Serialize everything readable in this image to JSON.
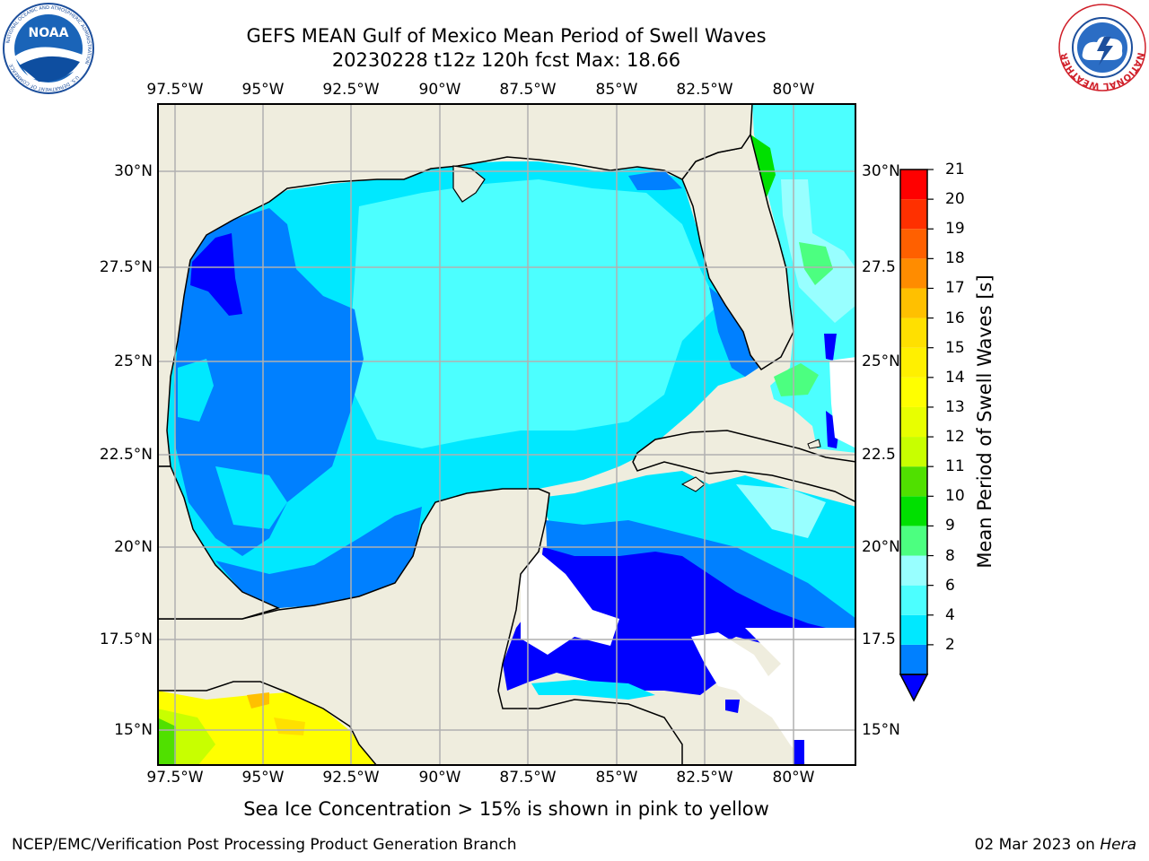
{
  "header": {
    "title_line1": "GEFS MEAN Gulf of Mexico Mean Period of Swell Waves",
    "title_line2": "20230228 t12z 120h fcst   Max: 18.66"
  },
  "map": {
    "lon_labels": [
      "97.5°W",
      "95°W",
      "92.5°W",
      "90°W",
      "87.5°W",
      "85°W",
      "82.5°W",
      "80°W"
    ],
    "lat_labels_left": [
      "30°N",
      "27.5°N",
      "25°N",
      "22.5°N",
      "20°N",
      "17.5°N",
      "15°N"
    ],
    "lat_labels_right": [
      "30°N",
      "27.5",
      "25°N",
      "22.5",
      "20°N",
      "17.5",
      "15°N"
    ],
    "colors": {
      "land": "#efedde",
      "c2_4": "#0080ff",
      "c4_6": "#00e8ff",
      "c6_8": "#4cffff",
      "c8_9": "#98ffff",
      "c9_10": "#4cff80",
      "c10_11": "#00e000",
      "under_2": "#0000ff",
      "grid": "#b0b0b0"
    }
  },
  "colorbar": {
    "title": "Mean Period of Swell Waves [s]",
    "labels": [
      "21",
      "20",
      "19",
      "18",
      "17",
      "16",
      "15",
      "14",
      "13",
      "12",
      "11",
      "10",
      "9",
      "8",
      "6",
      "4",
      "2"
    ],
    "colors": [
      "#0080ff",
      "#00e8ff",
      "#4cffff",
      "#98ffff",
      "#4cff80",
      "#00e000",
      "#50e000",
      "#c8ff00",
      "#e8ff00",
      "#ffff00",
      "#fff000",
      "#ffe000",
      "#ffc000",
      "#ff8c00",
      "#ff6000",
      "#ff3000",
      "#ff0000"
    ],
    "under_color": "#0000ff"
  },
  "subtitle": "Sea Ice Concentration > 15% is shown in pink to yellow",
  "footer": {
    "left": "NCEP/EMC/Verification Post Processing Product Generation Branch",
    "right_date": "02 Mar 2023 on ",
    "right_host": "Hera"
  },
  "logos": {
    "noaa_text": "NOAA",
    "noaa_ring_text": "NATIONAL OCEANIC AND ATMOSPHERIC ADMINISTRATION",
    "noaa_ring_bottom": "U.S. DEPARTMENT OF COMMERCE",
    "nws_ring_text": "NATIONAL WEATHER SERVICE"
  }
}
